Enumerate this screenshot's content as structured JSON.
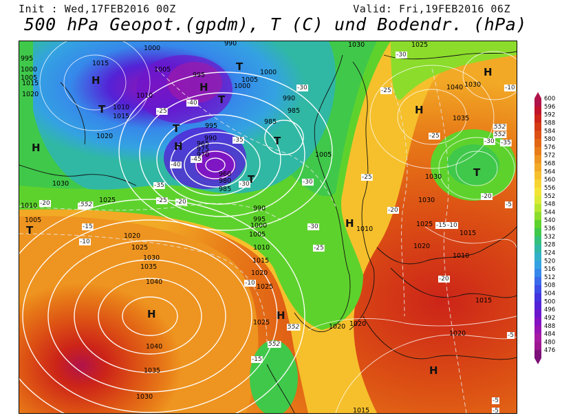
{
  "header": {
    "init": "Init : Wed,17FEB2016 00Z",
    "valid": "Valid: Fri,19FEB2016 06Z",
    "title": "500 hPa Geopot.(gpdm), T (C) und Bodendr. (hPa)"
  },
  "legend": {
    "values": [
      "600",
      "596",
      "592",
      "588",
      "584",
      "580",
      "576",
      "572",
      "568",
      "564",
      "560",
      "556",
      "552",
      "548",
      "544",
      "540",
      "536",
      "532",
      "528",
      "524",
      "520",
      "516",
      "512",
      "508",
      "504",
      "500",
      "496",
      "492",
      "488",
      "484",
      "480",
      "476"
    ],
    "colors": [
      "#b0124a",
      "#c0142c",
      "#cc2418",
      "#d43a14",
      "#dc5014",
      "#e26614",
      "#e87c18",
      "#ee9420",
      "#f2aa26",
      "#f6c02c",
      "#f8d432",
      "#f4e436",
      "#dcea36",
      "#b6e630",
      "#8cdc2c",
      "#5ed22c",
      "#40c84a",
      "#34c07a",
      "#30b8a4",
      "#32b0c8",
      "#34a2e2",
      "#3688ea",
      "#3a6aea",
      "#3c4ee6",
      "#4234de",
      "#5422d6",
      "#6c16cc",
      "#8412c2",
      "#9614b2",
      "#a61aa2",
      "#9c1890",
      "#7c1078"
    ]
  },
  "map": {
    "pressure_labels": [
      "995",
      "1000",
      "1000",
      "1005",
      "995",
      "990",
      "1000",
      "1005",
      "990",
      "985",
      "1015",
      "1010",
      "1000",
      "995",
      "990",
      "985",
      "980",
      "975",
      "970",
      "965",
      "960",
      "985",
      "995",
      "990",
      "1000",
      "1005",
      "1010",
      "1015",
      "1020",
      "1025",
      "1030",
      "1035",
      "1040",
      "1040",
      "1035",
      "1030",
      "1025",
      "1020",
      "1015",
      "1010",
      "1005",
      "1030",
      "1025",
      "1030",
      "1020",
      "1030",
      "1025",
      "1020",
      "1015",
      "1010",
      "1015",
      "1020",
      "1025",
      "1030",
      "1035",
      "1040",
      "1020",
      "1005",
      "1010",
      "1015",
      "1020",
      "1025",
      "1030",
      "1015",
      "1020",
      "1005",
      "1010"
    ],
    "temp_labels": [
      "-30",
      "-25",
      "-40",
      "-35",
      "-30",
      "-45",
      "-40",
      "-35",
      "-30",
      "-25",
      "-20",
      "-15",
      "-10",
      "-5",
      "-25",
      "-30",
      "-35",
      "-30",
      "-25",
      "-20",
      "-15",
      "-20",
      "-25",
      "-30",
      "-25",
      "-20",
      "-10",
      "-5",
      "-20",
      "-15",
      "-10",
      "-5",
      "-15",
      "-10",
      "-5"
    ],
    "gph_labels": [
      "552",
      "552",
      "552",
      "552",
      "552"
    ],
    "highs": [
      "H",
      "H",
      "H",
      "H",
      "H",
      "H",
      "H",
      "H",
      "H",
      "H"
    ],
    "lows": [
      "T",
      "T",
      "T",
      "T",
      "T",
      "T",
      "T",
      "T"
    ]
  }
}
